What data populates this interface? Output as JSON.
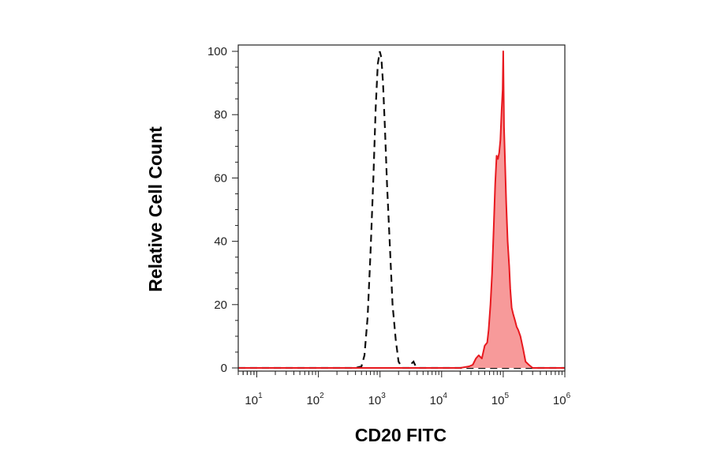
{
  "chart_data": {
    "type": "area",
    "xlabel": "CD20 FITC",
    "ylabel": "Relative Cell Count",
    "x_scale": "log",
    "xlim": [
      5,
      1000000
    ],
    "ylim": [
      -1,
      102
    ],
    "x_ticks": [
      {
        "value": 10,
        "base": "10",
        "exp": "1"
      },
      {
        "value": 100,
        "base": "10",
        "exp": "2"
      },
      {
        "value": 1000,
        "base": "10",
        "exp": "3"
      },
      {
        "value": 10000,
        "base": "10",
        "exp": "4"
      },
      {
        "value": 100000,
        "base": "10",
        "exp": "5"
      },
      {
        "value": 1000000,
        "base": "10",
        "exp": "6"
      }
    ],
    "y_ticks": [
      "0",
      "20",
      "40",
      "60",
      "80",
      "100"
    ],
    "grid": false,
    "series": [
      {
        "style": "dashed",
        "color": "#111111",
        "x": [
          5,
          100,
          400,
          500,
          560,
          630,
          700,
          780,
          850,
          920,
          990,
          1050,
          1120,
          1200,
          1300,
          1450,
          1600,
          1800,
          2000,
          2300,
          2700,
          3000,
          3300,
          3500,
          3800,
          4200,
          10000,
          1000000
        ],
        "y": [
          0,
          0,
          0,
          0.5,
          4,
          16,
          36,
          60,
          82,
          96,
          100,
          98,
          90,
          76,
          58,
          38,
          20,
          9,
          2,
          0,
          0,
          0,
          1.5,
          2,
          0.5,
          0,
          0,
          0
        ]
      },
      {
        "style": "filled",
        "color": "#e8191f",
        "fill": "#f79a9a",
        "x": [
          5,
          20000,
          28000,
          32000,
          36000,
          40000,
          45000,
          50000,
          55000,
          58000,
          62000,
          66000,
          70000,
          74000,
          78000,
          82000,
          86000,
          90000,
          94000,
          98000,
          100000,
          103000,
          107000,
          112000,
          118000,
          125000,
          130000,
          137000,
          145000,
          155000,
          165000,
          175000,
          190000,
          210000,
          230000,
          260000,
          300000,
          1000000
        ],
        "y": [
          0,
          0,
          0.5,
          1,
          3,
          4,
          3,
          7,
          8,
          12,
          20,
          30,
          44,
          58,
          67,
          66,
          68,
          72,
          81,
          88,
          100,
          76,
          65,
          52,
          40,
          32,
          25,
          19,
          17,
          15,
          13,
          12,
          10,
          6,
          2,
          1,
          0,
          0
        ]
      }
    ]
  }
}
